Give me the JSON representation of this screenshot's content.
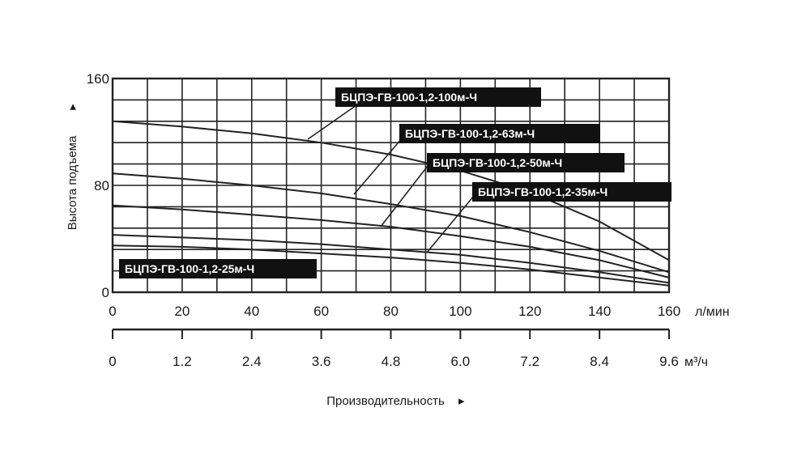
{
  "chart_data": {
    "type": "line",
    "x_unit": "л/мин",
    "x2_unit": "м³/ч",
    "ylabel": "Высота подъема",
    "xlabel": "Производительность",
    "x_ticks": [
      0,
      20,
      40,
      60,
      80,
      100,
      120,
      140,
      160
    ],
    "x2_ticks": [
      "0",
      "1.2",
      "2.4",
      "3.6",
      "4.8",
      "6.0",
      "7.2",
      "8.4",
      "9.6"
    ],
    "y_ticks": [
      0,
      80,
      160
    ],
    "xlim": [
      0,
      160
    ],
    "ylim": [
      0,
      160
    ],
    "grid": true,
    "series": [
      {
        "name": "БЦПЭ-ГВ-100-1,2-100м-Ч",
        "x": [
          0,
          20,
          40,
          60,
          80,
          100,
          120,
          140,
          160
        ],
        "y": [
          128,
          124,
          119,
          112,
          103,
          91,
          75,
          53,
          24
        ]
      },
      {
        "name": "БЦПЭ-ГВ-100-1,2-63м-Ч",
        "x": [
          0,
          20,
          40,
          60,
          80,
          100,
          120,
          140,
          160
        ],
        "y": [
          89,
          85,
          80,
          74,
          66,
          57,
          45,
          31,
          15
        ]
      },
      {
        "name": "БЦПЭ-ГВ-100-1,2-50м-Ч",
        "x": [
          0,
          20,
          40,
          60,
          80,
          100,
          120,
          140,
          160
        ],
        "y": [
          65,
          62,
          58,
          54,
          49,
          42,
          34,
          24,
          11
        ]
      },
      {
        "name": "БЦПЭ-ГВ-100-1,2-35м-Ч",
        "x": [
          0,
          20,
          40,
          60,
          80,
          100,
          120,
          140,
          160
        ],
        "y": [
          43,
          41,
          39,
          36,
          32,
          28,
          22,
          15,
          7
        ]
      },
      {
        "name": "БЦПЭ-ГВ-100-1,2-25м-Ч",
        "x": [
          0,
          20,
          40,
          60,
          80,
          100,
          120,
          140,
          160
        ],
        "y": [
          35,
          34,
          32,
          29,
          26,
          22,
          17,
          11,
          5
        ]
      }
    ],
    "colors": {
      "line": "#222222",
      "label_bg": "#111111",
      "grid": "#222222"
    }
  }
}
